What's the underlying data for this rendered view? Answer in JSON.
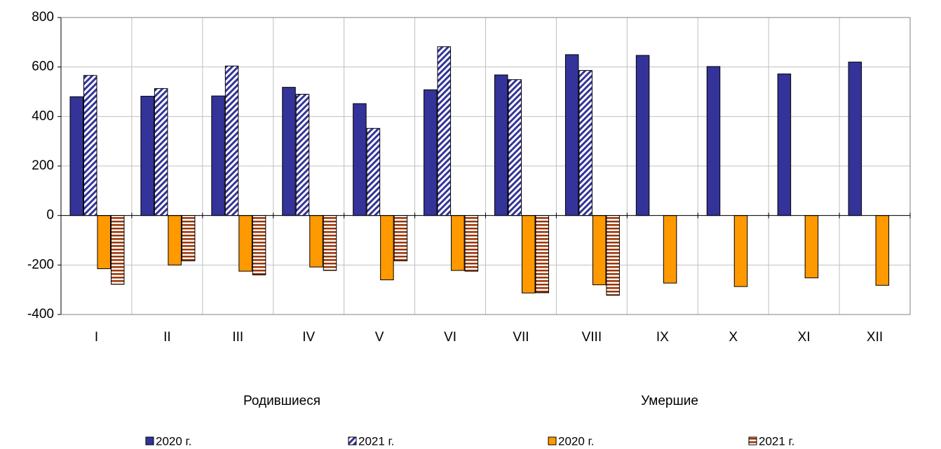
{
  "chart_data": {
    "type": "bar",
    "categories": [
      "I",
      "II",
      "III",
      "IV",
      "V",
      "VI",
      "VII",
      "VIII",
      "IX",
      "X",
      "XI",
      "XII"
    ],
    "group_labels": [
      "Родившиеся",
      "Умершие"
    ],
    "series": [
      {
        "name": "2020 г.",
        "color": "#333399",
        "fill_style": "solid",
        "values": [
          480,
          482,
          483,
          518,
          452,
          508,
          568,
          650,
          647,
          602,
          572,
          620
        ]
      },
      {
        "name": "2021 г.",
        "color": "#333399",
        "fill_style": "diagonal",
        "values": [
          566,
          513,
          604,
          490,
          352,
          682,
          549,
          586,
          null,
          null,
          null,
          null
        ]
      },
      {
        "name": "2020 г.",
        "color": "#FF9900",
        "fill_style": "solid",
        "values": [
          -215,
          -200,
          -225,
          -208,
          -260,
          -222,
          -313,
          -280,
          -273,
          -287,
          -252,
          -282
        ]
      },
      {
        "name": "2021 г.",
        "color": "#993300",
        "fill_style": "horizontal",
        "values": [
          -278,
          -183,
          -240,
          -222,
          -183,
          -225,
          -312,
          -322,
          null,
          null,
          null,
          null
        ]
      }
    ],
    "ylim": [
      -400,
      800
    ],
    "yticks": [
      -400,
      -200,
      0,
      200,
      400,
      600,
      800
    ],
    "grid": true
  }
}
